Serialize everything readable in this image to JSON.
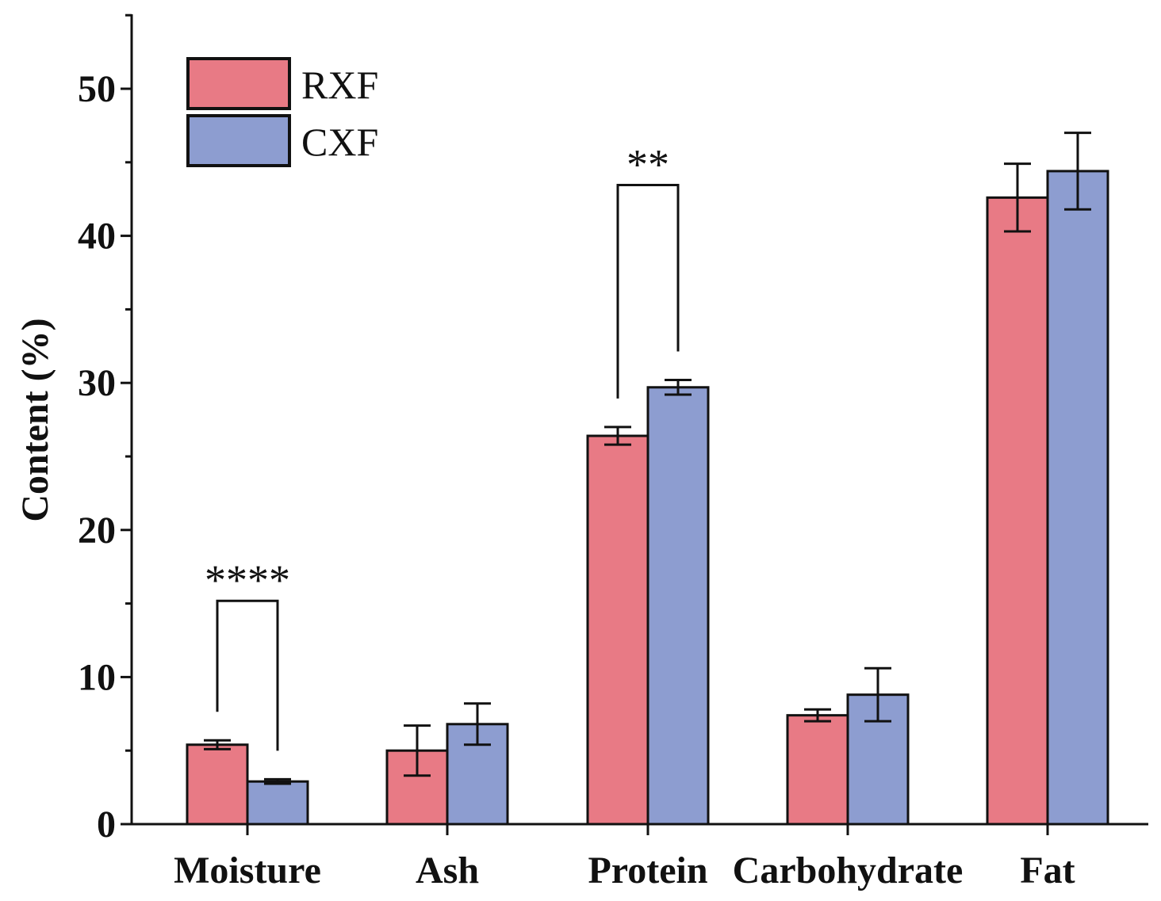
{
  "chart_data": {
    "type": "bar",
    "title": "",
    "xlabel": "",
    "ylabel": "Content (%)",
    "ylim": [
      0,
      55
    ],
    "yticks": [
      0,
      10,
      20,
      30,
      40,
      50
    ],
    "categories": [
      "Moisture",
      "Ash",
      "Protein",
      "Carbohydrate",
      "Fat"
    ],
    "series": [
      {
        "name": "RXF",
        "color": "#e87a85",
        "values": [
          5.4,
          5.0,
          26.4,
          7.4,
          42.6
        ],
        "errors": [
          0.3,
          1.7,
          0.6,
          0.4,
          2.3
        ]
      },
      {
        "name": "CXF",
        "color": "#8d9dd0",
        "values": [
          2.9,
          6.8,
          29.7,
          8.8,
          44.4
        ],
        "errors": [
          0.15,
          1.4,
          0.5,
          1.8,
          2.6
        ]
      }
    ],
    "legend": {
      "position": "top-left"
    },
    "annotations": [
      {
        "category": "Moisture",
        "label": "****"
      },
      {
        "category": "Protein",
        "label": "**"
      }
    ]
  }
}
